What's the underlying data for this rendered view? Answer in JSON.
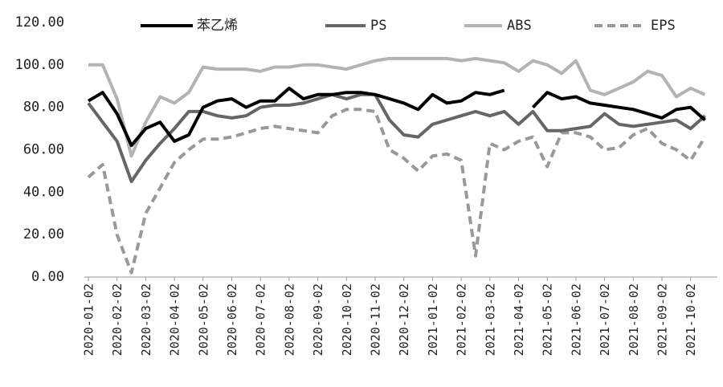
{
  "chart_data": {
    "type": "line",
    "categories": [
      "2020-01-02",
      null,
      "2020-02-02",
      null,
      "2020-03-02",
      null,
      "2020-04-02",
      null,
      "2020-05-02",
      null,
      "2020-06-02",
      null,
      "2020-07-02",
      null,
      "2020-08-02",
      null,
      "2020-09-02",
      null,
      "2020-10-02",
      null,
      "2020-11-02",
      null,
      "2020-12-02",
      null,
      "2021-01-02",
      null,
      "2021-02-02",
      null,
      "2021-03-02",
      null,
      "2021-04-02",
      null,
      "2021-05-02",
      null,
      "2021-06-02",
      null,
      "2021-07-02",
      null,
      "2021-08-02",
      null,
      "2021-09-02",
      null,
      "2021-10-02",
      null
    ],
    "series": [
      {
        "name": "苯乙烯",
        "color": "#000000",
        "dash": false,
        "values": [
          83,
          87,
          77,
          62,
          70,
          73,
          64,
          67,
          80,
          83,
          84,
          80,
          83,
          83,
          89,
          84,
          86,
          86,
          87,
          87,
          86,
          84,
          82,
          79,
          86,
          82,
          83,
          87,
          86,
          88,
          null,
          80,
          87,
          84,
          85,
          82,
          81,
          80,
          79,
          77,
          75,
          79,
          80,
          74
        ]
      },
      {
        "name": "PS",
        "color": "#666666",
        "dash": false,
        "values": [
          82,
          73,
          64,
          45,
          55,
          63,
          70,
          78,
          78,
          76,
          75,
          76,
          80,
          81,
          81,
          82,
          84,
          86,
          84,
          86,
          86,
          74,
          67,
          66,
          72,
          74,
          76,
          78,
          76,
          78,
          72,
          78,
          69,
          69,
          70,
          71,
          77,
          72,
          71,
          72,
          73,
          74,
          70,
          76
        ]
      },
      {
        "name": "ABS",
        "color": "#b3b3b3",
        "dash": false,
        "values": [
          100,
          100,
          84,
          57,
          73,
          85,
          82,
          87,
          99,
          98,
          98,
          98,
          97,
          99,
          99,
          100,
          100,
          99,
          98,
          100,
          102,
          103,
          103,
          103,
          103,
          103,
          102,
          103,
          102,
          101,
          97,
          102,
          100,
          96,
          102,
          88,
          86,
          89,
          92,
          97,
          95,
          85,
          89,
          86
        ]
      },
      {
        "name": "EPS",
        "color": "#999999",
        "dash": true,
        "values": [
          47,
          53,
          20,
          2,
          30,
          42,
          54,
          60,
          65,
          65,
          66,
          68,
          70,
          71,
          70,
          69,
          68,
          76,
          79,
          79,
          78,
          60,
          56,
          50,
          57,
          58,
          55,
          10,
          63,
          60,
          64,
          66,
          52,
          68,
          68,
          66,
          60,
          61,
          67,
          70,
          63,
          60,
          55,
          66
        ]
      }
    ],
    "ylim": [
      0,
      120
    ],
    "yticks": [
      {
        "value": 0,
        "label": "0.00"
      },
      {
        "value": 20,
        "label": "20.00"
      },
      {
        "value": 40,
        "label": "40.00"
      },
      {
        "value": 60,
        "label": "60.00"
      },
      {
        "value": 80,
        "label": "80.00"
      },
      {
        "value": 100,
        "label": "100.00"
      },
      {
        "value": 120,
        "label": "120.00"
      }
    ],
    "grid": false,
    "legend": "top"
  }
}
